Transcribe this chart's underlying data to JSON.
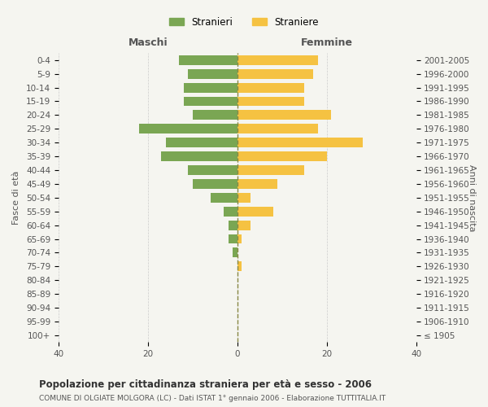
{
  "age_groups": [
    "100+",
    "95-99",
    "90-94",
    "85-89",
    "80-84",
    "75-79",
    "70-74",
    "65-69",
    "60-64",
    "55-59",
    "50-54",
    "45-49",
    "40-44",
    "35-39",
    "30-34",
    "25-29",
    "20-24",
    "15-19",
    "10-14",
    "5-9",
    "0-4"
  ],
  "birth_years": [
    "≤ 1905",
    "1906-1910",
    "1911-1915",
    "1916-1920",
    "1921-1925",
    "1926-1930",
    "1931-1935",
    "1936-1940",
    "1941-1945",
    "1946-1950",
    "1951-1955",
    "1956-1960",
    "1961-1965",
    "1966-1970",
    "1971-1975",
    "1976-1980",
    "1981-1985",
    "1986-1990",
    "1991-1995",
    "1996-2000",
    "2001-2005"
  ],
  "males": [
    0,
    0,
    0,
    0,
    0,
    0,
    1,
    2,
    2,
    3,
    6,
    10,
    11,
    17,
    16,
    22,
    10,
    12,
    12,
    11,
    13
  ],
  "females": [
    0,
    0,
    0,
    0,
    0,
    1,
    0,
    1,
    3,
    8,
    3,
    9,
    15,
    20,
    28,
    18,
    21,
    15,
    15,
    17,
    18
  ],
  "male_color": "#7aa653",
  "female_color": "#f5c242",
  "background_color": "#f5f5f0",
  "grid_color": "#cccccc",
  "title": "Popolazione per cittadinanza straniera per età e sesso - 2006",
  "subtitle": "COMUNE DI OLGIATE MOLGORA (LC) - Dati ISTAT 1° gennaio 2006 - Elaborazione TUTTITALIA.IT",
  "xlabel_left": "Maschi",
  "xlabel_right": "Femmine",
  "ylabel_left": "Fasce di età",
  "ylabel_right": "Anni di nascita",
  "legend_male": "Stranieri",
  "legend_female": "Straniere",
  "xlim": 40
}
